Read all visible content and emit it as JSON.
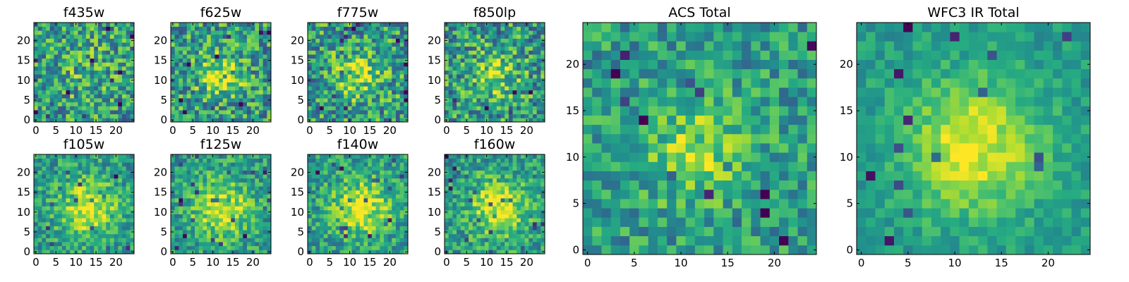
{
  "figure": {
    "colormap": "viridis",
    "colors": {
      "low": "#440154",
      "mid": "#21918c",
      "high": "#fde725"
    }
  },
  "chart_data": [
    {
      "type": "heatmap",
      "title": "f435w",
      "grid": [
        25,
        25
      ],
      "xticks": [
        0,
        5,
        10,
        15,
        20
      ],
      "yticks": [
        0,
        5,
        10,
        15,
        20
      ],
      "xlim": [
        0,
        24
      ],
      "ylim": [
        0,
        24
      ],
      "signal": "weak",
      "noise": "high",
      "peak": [
        12,
        12
      ]
    },
    {
      "type": "heatmap",
      "title": "f625w",
      "grid": [
        25,
        25
      ],
      "xticks": [
        0,
        5,
        10,
        15,
        20
      ],
      "yticks": [
        0,
        5,
        10,
        15,
        20
      ],
      "xlim": [
        0,
        24
      ],
      "ylim": [
        0,
        24
      ],
      "signal": "moderate",
      "noise": "high",
      "peak": [
        12,
        11
      ]
    },
    {
      "type": "heatmap",
      "title": "f775w",
      "grid": [
        25,
        25
      ],
      "xticks": [
        0,
        5,
        10,
        15,
        20
      ],
      "yticks": [
        0,
        5,
        10,
        15,
        20
      ],
      "xlim": [
        0,
        24
      ],
      "ylim": [
        0,
        24
      ],
      "signal": "moderate",
      "noise": "high",
      "peak": [
        12,
        11
      ]
    },
    {
      "type": "heatmap",
      "title": "f850lp",
      "grid": [
        25,
        25
      ],
      "xticks": [
        0,
        5,
        10,
        15,
        20
      ],
      "yticks": [
        0,
        5,
        10,
        15,
        20
      ],
      "xlim": [
        0,
        24
      ],
      "ylim": [
        0,
        24
      ],
      "signal": "moderate",
      "noise": "high",
      "peak": [
        12,
        11
      ]
    },
    {
      "type": "heatmap",
      "title": "f105w",
      "grid": [
        25,
        25
      ],
      "xticks": [
        0,
        5,
        10,
        15,
        20
      ],
      "yticks": [
        0,
        5,
        10,
        15,
        20
      ],
      "xlim": [
        0,
        24
      ],
      "ylim": [
        0,
        24
      ],
      "signal": "strong",
      "noise": "medium",
      "peak": [
        13,
        11
      ]
    },
    {
      "type": "heatmap",
      "title": "f125w",
      "grid": [
        25,
        25
      ],
      "xticks": [
        0,
        5,
        10,
        15,
        20
      ],
      "yticks": [
        0,
        5,
        10,
        15,
        20
      ],
      "xlim": [
        0,
        24
      ],
      "ylim": [
        0,
        24
      ],
      "signal": "strong",
      "noise": "medium",
      "peak": [
        12,
        11
      ]
    },
    {
      "type": "heatmap",
      "title": "f140w",
      "grid": [
        25,
        25
      ],
      "xticks": [
        0,
        5,
        10,
        15,
        20
      ],
      "yticks": [
        0,
        5,
        10,
        15,
        20
      ],
      "xlim": [
        0,
        24
      ],
      "ylim": [
        0,
        24
      ],
      "signal": "strong",
      "noise": "medium",
      "peak": [
        13,
        11
      ]
    },
    {
      "type": "heatmap",
      "title": "f160w",
      "grid": [
        25,
        25
      ],
      "xticks": [
        0,
        5,
        10,
        15,
        20
      ],
      "yticks": [
        0,
        5,
        10,
        15,
        20
      ],
      "xlim": [
        0,
        24
      ],
      "ylim": [
        0,
        24
      ],
      "signal": "strong",
      "noise": "medium",
      "peak": [
        13,
        11
      ]
    },
    {
      "type": "heatmap",
      "title": "ACS Total",
      "grid": [
        25,
        25
      ],
      "xticks": [
        0,
        5,
        10,
        15,
        20
      ],
      "yticks": [
        0,
        5,
        10,
        15,
        20
      ],
      "xlim": [
        0,
        24
      ],
      "ylim": [
        0,
        24
      ],
      "signal": "moderate",
      "noise": "medium",
      "peak": [
        12,
        11
      ]
    },
    {
      "type": "heatmap",
      "title": "WFC3 IR Total",
      "grid": [
        25,
        25
      ],
      "xticks": [
        0,
        5,
        10,
        15,
        20
      ],
      "yticks": [
        0,
        5,
        10,
        15,
        20
      ],
      "xlim": [
        0,
        24
      ],
      "ylim": [
        0,
        24
      ],
      "signal": "strong",
      "noise": "low",
      "peak": [
        12,
        11
      ]
    }
  ]
}
